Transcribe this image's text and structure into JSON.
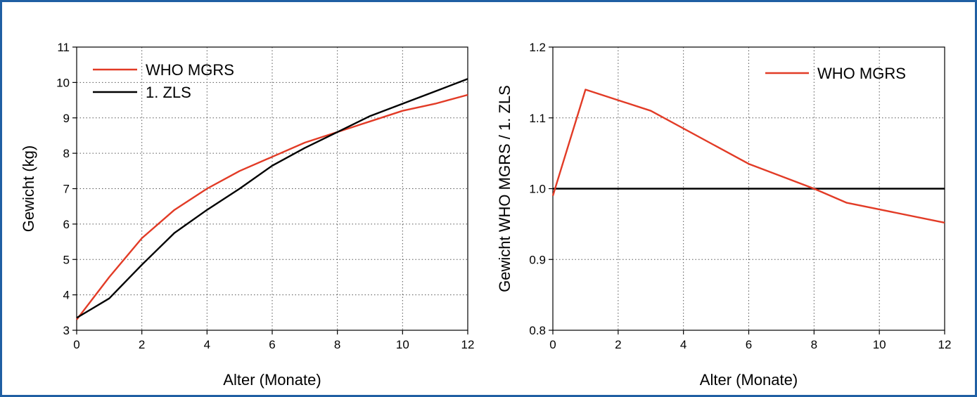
{
  "colors": {
    "frame": "#1f5fa3",
    "who": "#e23b26",
    "zls": "#000000",
    "grid": "#555555"
  },
  "chart_data": [
    {
      "type": "line",
      "xlabel": "Alter (Monate)",
      "ylabel": "Gewicht (kg)",
      "xlim": [
        0,
        12
      ],
      "ylim": [
        3,
        11
      ],
      "xticks": [
        0,
        2,
        4,
        6,
        8,
        10,
        12
      ],
      "yticks": [
        3,
        4,
        5,
        6,
        7,
        8,
        9,
        10,
        11
      ],
      "grid": true,
      "legend_position": "top-left",
      "series": [
        {
          "name": "WHO MGRS",
          "color": "#e23b26",
          "x": [
            0,
            1,
            2,
            3,
            4,
            5,
            6,
            7,
            8,
            9,
            10,
            11,
            12
          ],
          "y": [
            3.3,
            4.5,
            5.6,
            6.4,
            7.0,
            7.5,
            7.9,
            8.3,
            8.6,
            8.9,
            9.2,
            9.4,
            9.65
          ]
        },
        {
          "name": "1. ZLS",
          "color": "#000000",
          "x": [
            0,
            1,
            2,
            3,
            4,
            5,
            6,
            7,
            8,
            9,
            10,
            11,
            12
          ],
          "y": [
            3.35,
            3.9,
            4.85,
            5.75,
            6.4,
            7.0,
            7.65,
            8.15,
            8.6,
            9.05,
            9.4,
            9.75,
            10.1
          ]
        }
      ]
    },
    {
      "type": "line",
      "xlabel": "Alter (Monate)",
      "ylabel": "Gewicht WHO MGRS / 1. ZLS",
      "xlim": [
        0,
        12
      ],
      "ylim": [
        0.8,
        1.2
      ],
      "xticks": [
        0,
        2,
        4,
        6,
        8,
        10,
        12
      ],
      "yticks": [
        0.8,
        0.9,
        1.0,
        1.1,
        1.2
      ],
      "ytick_labels": [
        "0.8",
        "0.9",
        "1.0",
        "1.1",
        "1.2"
      ],
      "grid": true,
      "legend_position": "top-right",
      "reference_line": 1.0,
      "series": [
        {
          "name": "WHO MGRS",
          "color": "#e23b26",
          "x": [
            0,
            1,
            3,
            6,
            8,
            9,
            12
          ],
          "y": [
            0.99,
            1.14,
            1.11,
            1.035,
            1.0,
            0.98,
            0.952
          ]
        }
      ]
    }
  ]
}
